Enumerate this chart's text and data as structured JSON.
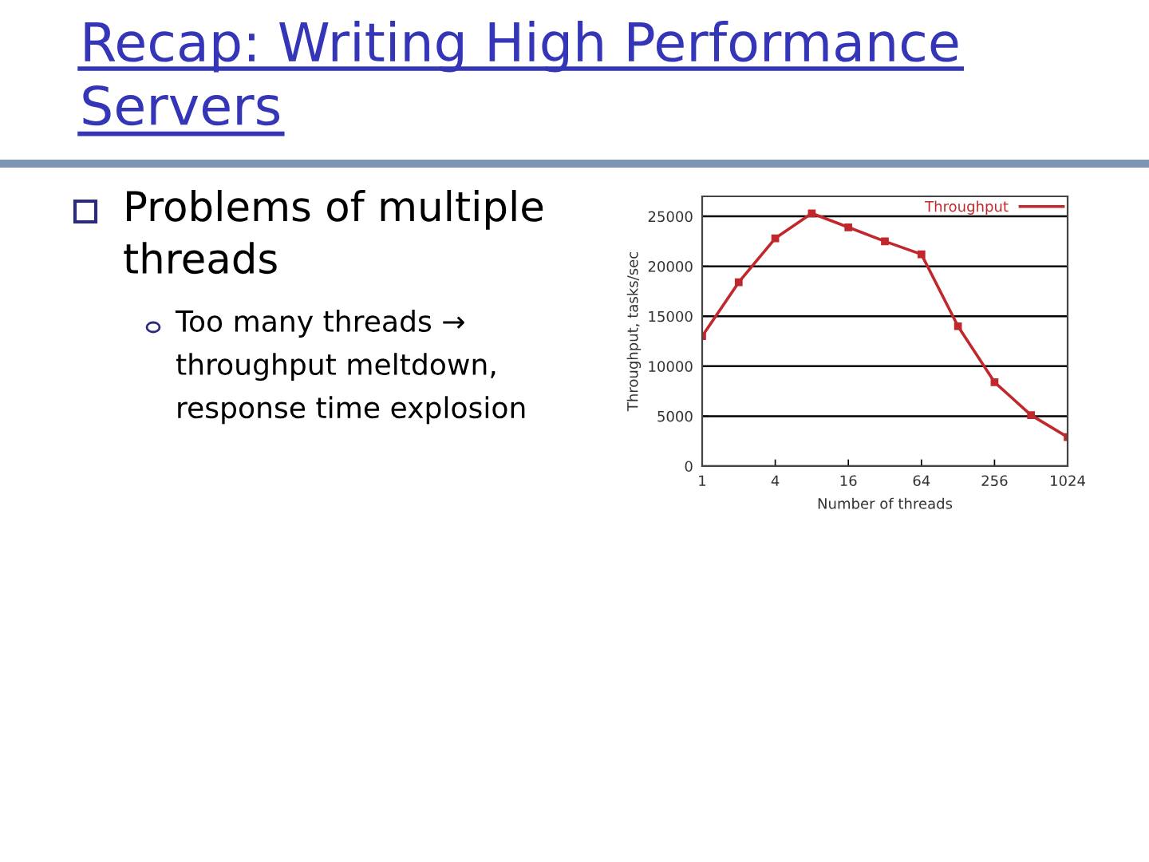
{
  "chart_data": {
    "type": "line",
    "title": "Recap: Writing High Performance Servers",
    "xlabel": "Number of threads",
    "ylabel": "Throughput, tasks/sec",
    "x": [
      1,
      2,
      4,
      8,
      16,
      32,
      64,
      128,
      256,
      512,
      1024
    ],
    "series": [
      {
        "name": "Throughput",
        "color": "#c0282d",
        "values": [
          13000,
          18400,
          22800,
          25300,
          23900,
          22500,
          21200,
          14000,
          8400,
          5100,
          2900
        ]
      }
    ],
    "log": "x",
    "xlim": [
      1,
      1024
    ],
    "xticks": [
      1,
      4,
      16,
      64,
      256,
      1024
    ],
    "ylim": [
      0,
      27000
    ],
    "yticks": [
      0,
      5000,
      10000,
      15000,
      20000,
      25000
    ],
    "grid": "y",
    "legend": "top right",
    "marker": "square",
    "annotations": [
      "Problems of multiple threads",
      "Too many threads → throughput meltdown, response time explosion"
    ]
  }
}
